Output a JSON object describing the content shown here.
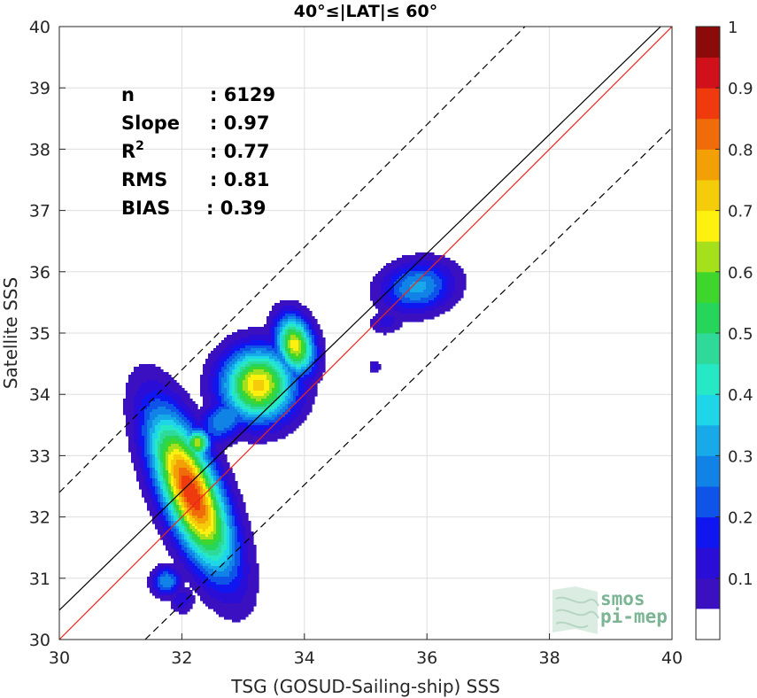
{
  "chart_data": {
    "type": "contour-density",
    "title": "40°≤|LAT|≤ 60°",
    "xlabel": "TSG (GOSUD-Sailing-ship) SSS",
    "ylabel": "Satellite SSS",
    "xlim": [
      30,
      40
    ],
    "ylim": [
      30,
      40
    ],
    "xticks": [
      30,
      32,
      34,
      36,
      38,
      40
    ],
    "yticks": [
      30,
      31,
      32,
      33,
      34,
      35,
      36,
      37,
      38,
      39,
      40
    ],
    "grid": true,
    "stats": [
      {
        "label": "n",
        "sup": "",
        "value": ": 6129"
      },
      {
        "label": "Slope",
        "sup": "",
        "value": ": 0.97"
      },
      {
        "label": "R",
        "sup": "2",
        "value": ": 0.77"
      },
      {
        "label": "RMS",
        "sup": "",
        "value": ": 0.81"
      },
      {
        "label": "BIAS",
        "sup": "",
        "value": ": 0.39"
      }
    ],
    "lines": [
      {
        "kind": "one-to-one",
        "color": "#e8281e",
        "x": [
          30,
          40
        ],
        "y": [
          30,
          40
        ]
      },
      {
        "kind": "regression",
        "color": "#000000",
        "x": [
          30,
          40
        ],
        "y": [
          30.48,
          40.18
        ]
      },
      {
        "kind": "upper-bound",
        "color": "#000000",
        "dashed": true,
        "x": [
          30,
          40
        ],
        "y": [
          32.4,
          42.4
        ]
      },
      {
        "kind": "lower-bound",
        "color": "#000000",
        "dashed": true,
        "x": [
          31.4,
          40
        ],
        "y": [
          30,
          38.35
        ]
      }
    ],
    "density_blobs": [
      {
        "cx": 32.15,
        "cy": 32.4,
        "rx": 0.42,
        "ry": 1.25,
        "rot": -22,
        "peak": 0.9
      },
      {
        "cx": 32.25,
        "cy": 33.2,
        "rx": 0.2,
        "ry": 0.22,
        "rot": 0,
        "peak": 0.65
      },
      {
        "cx": 33.25,
        "cy": 34.15,
        "rx": 0.55,
        "ry": 0.55,
        "rot": -30,
        "peak": 0.72
      },
      {
        "cx": 33.85,
        "cy": 34.8,
        "rx": 0.28,
        "ry": 0.45,
        "rot": -15,
        "peak": 0.68
      },
      {
        "cx": 32.7,
        "cy": 33.6,
        "rx": 0.5,
        "ry": 0.3,
        "rot": -40,
        "peak": 0.3
      },
      {
        "cx": 31.75,
        "cy": 30.95,
        "rx": 0.22,
        "ry": 0.22,
        "rot": 0,
        "peak": 0.3
      },
      {
        "cx": 32.0,
        "cy": 30.65,
        "rx": 0.18,
        "ry": 0.2,
        "rot": 0,
        "peak": 0.15
      },
      {
        "cx": 35.85,
        "cy": 35.75,
        "rx": 0.55,
        "ry": 0.38,
        "rot": -10,
        "peak": 0.32
      },
      {
        "cx": 35.35,
        "cy": 35.2,
        "rx": 0.28,
        "ry": 0.2,
        "rot": -20,
        "peak": 0.12
      },
      {
        "cx": 35.15,
        "cy": 34.45,
        "rx": 0.08,
        "ry": 0.1,
        "rot": 0,
        "peak": 0.12
      }
    ],
    "colorbar": {
      "ticks": [
        "0.1",
        "0.2",
        "0.3",
        "0.4",
        "0.5",
        "0.6",
        "0.7",
        "0.8",
        "0.9",
        "1"
      ],
      "tick_values": [
        0.1,
        0.2,
        0.3,
        0.4,
        0.5,
        0.6,
        0.7,
        0.8,
        0.9,
        1.0
      ],
      "levels": [
        0,
        0.05,
        0.1,
        0.15,
        0.2,
        0.25,
        0.3,
        0.35,
        0.4,
        0.45,
        0.5,
        0.55,
        0.6,
        0.65,
        0.7,
        0.75,
        0.8,
        0.85,
        0.9,
        0.95,
        1.0
      ],
      "colors": [
        "#ffffff",
        "#5a17a8",
        "#3a10c0",
        "#2a0ed8",
        "#0f16ef",
        "#0e54e8",
        "#1182e6",
        "#17a9e8",
        "#1fd6e9",
        "#26e8c5",
        "#2ed99a",
        "#26d65a",
        "#3ed62c",
        "#a6df1c",
        "#fff10f",
        "#f4cc0a",
        "#f39f06",
        "#f06c0a",
        "#ef3a0d",
        "#d0101a",
        "#8b0a0a"
      ]
    }
  },
  "logo": {
    "line1": "smos",
    "line2": "pi-mep"
  }
}
